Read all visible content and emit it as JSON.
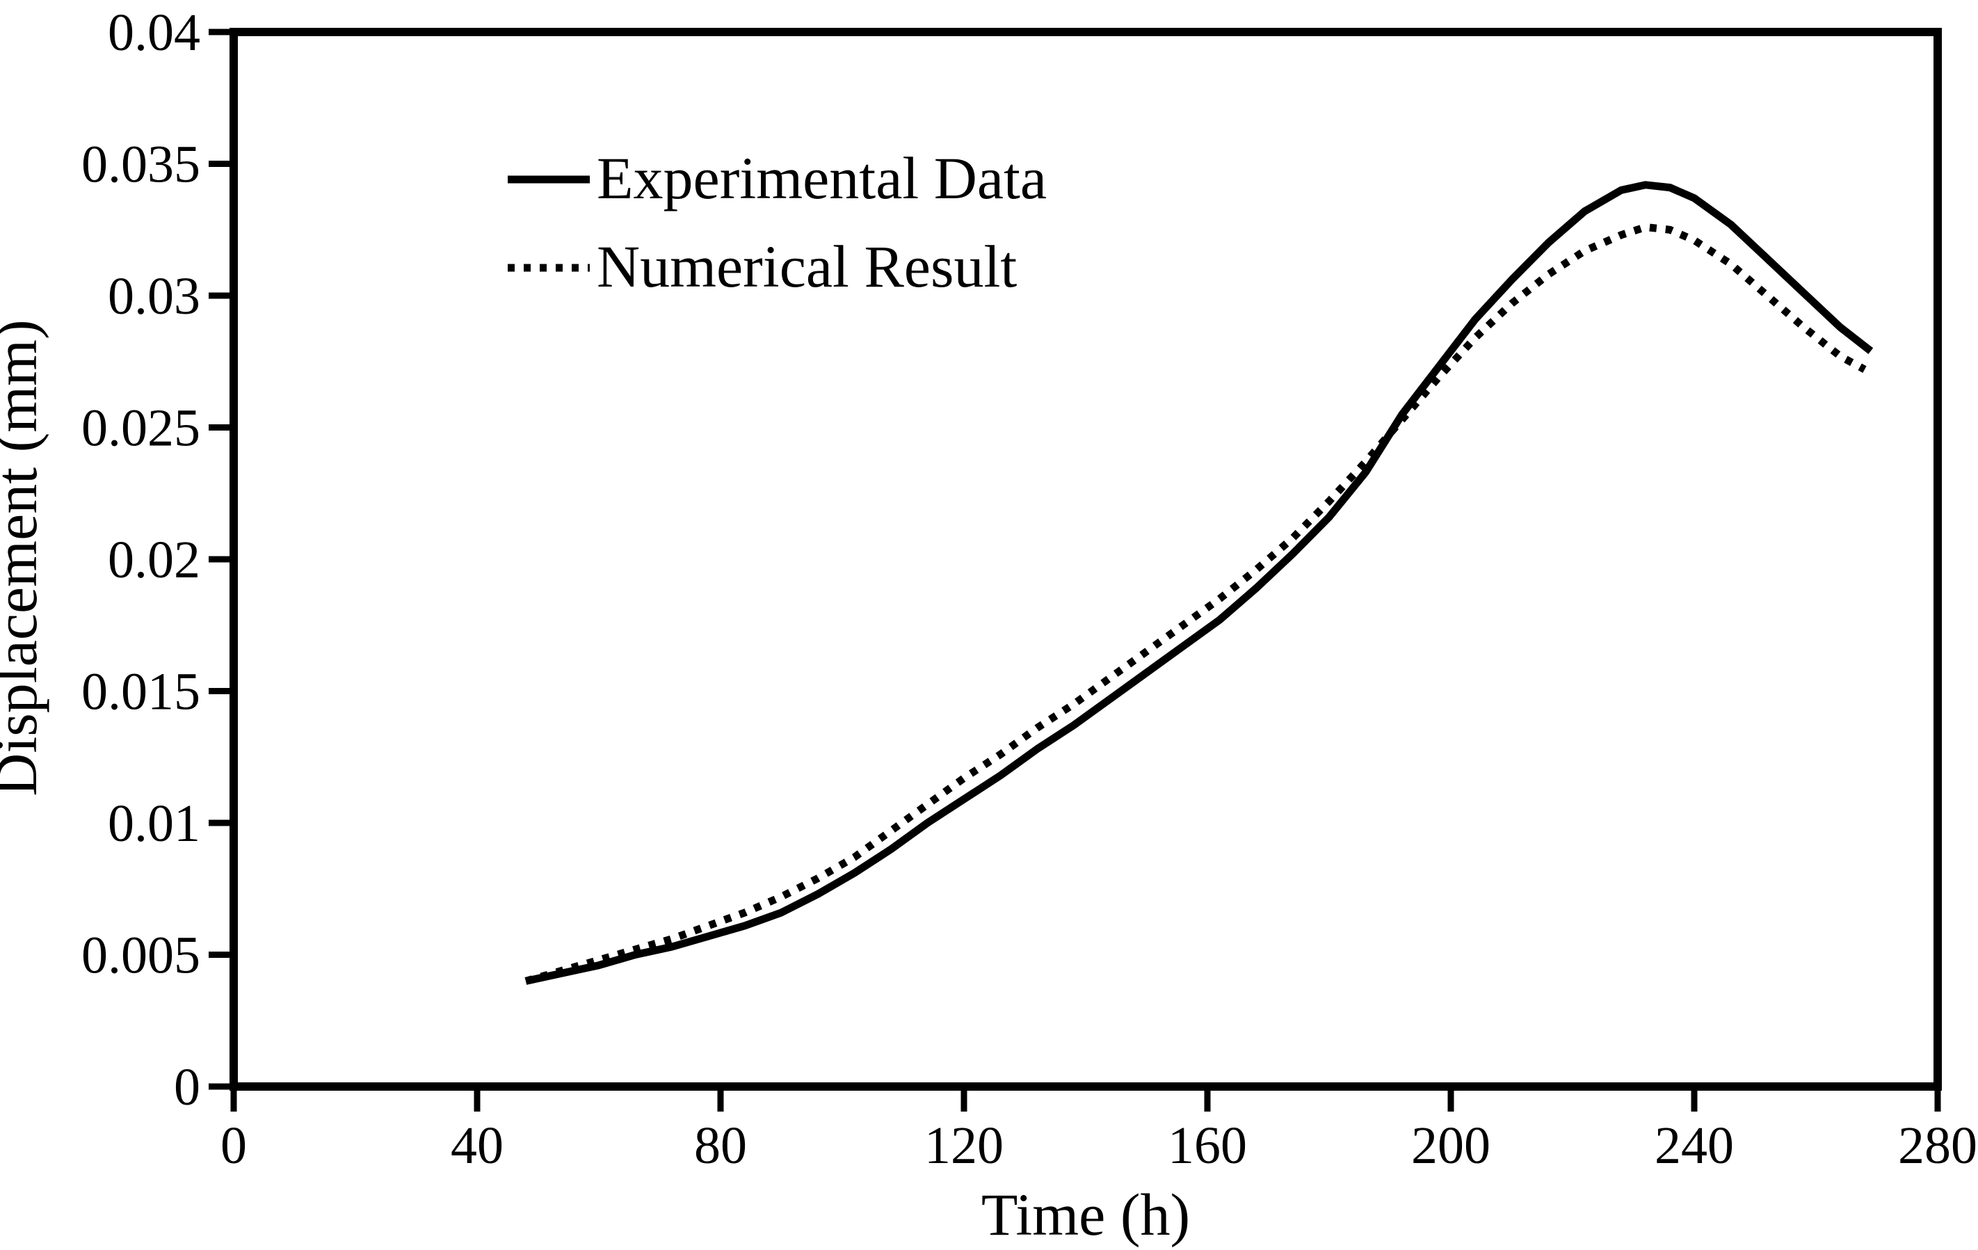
{
  "figure": {
    "background_color": "#ffffff",
    "ink_color": "#000000"
  },
  "axes": {
    "x_title": "Time (h)",
    "y_title": "Displacement (mm)"
  },
  "legend": {
    "items": [
      {
        "label": "Experimental Data",
        "line_style": "solid"
      },
      {
        "label": "Numerical Result",
        "line_style": "dotted"
      }
    ]
  },
  "chart_data": {
    "type": "line",
    "title": "",
    "xlabel": "Time (h)",
    "ylabel": "Displacement (mm)",
    "xlim": [
      0,
      280
    ],
    "ylim": [
      0,
      0.04
    ],
    "x_ticks": [
      0,
      40,
      80,
      120,
      160,
      200,
      240,
      280
    ],
    "x_tick_labels": [
      "0",
      "40",
      "80",
      "120",
      "160",
      "200",
      "240",
      "280"
    ],
    "y_ticks": [
      0,
      0.005,
      0.01,
      0.015,
      0.02,
      0.025,
      0.03,
      0.035,
      0.04
    ],
    "y_tick_labels": [
      "0",
      "0.005",
      "0.01",
      "0.015",
      "0.02",
      "0.025",
      "0.03",
      "0.035",
      "0.04"
    ],
    "grid": false,
    "legend_position": "upper-left-inside",
    "series": [
      {
        "name": "Experimental Data",
        "style": "solid",
        "color": "#000000",
        "points": [
          [
            48,
            0.004
          ],
          [
            54,
            0.0043
          ],
          [
            60,
            0.0046
          ],
          [
            66,
            0.005
          ],
          [
            72,
            0.0053
          ],
          [
            78,
            0.0057
          ],
          [
            84,
            0.0061
          ],
          [
            90,
            0.0066
          ],
          [
            96,
            0.0073
          ],
          [
            102,
            0.0081
          ],
          [
            108,
            0.009
          ],
          [
            114,
            0.01
          ],
          [
            120,
            0.0109
          ],
          [
            126,
            0.0118
          ],
          [
            132,
            0.0128
          ],
          [
            138,
            0.0137
          ],
          [
            144,
            0.0147
          ],
          [
            150,
            0.0157
          ],
          [
            156,
            0.0167
          ],
          [
            162,
            0.0177
          ],
          [
            168,
            0.0189
          ],
          [
            174,
            0.0202
          ],
          [
            180,
            0.0216
          ],
          [
            186,
            0.0233
          ],
          [
            192,
            0.0255
          ],
          [
            198,
            0.0273
          ],
          [
            204,
            0.0291
          ],
          [
            210,
            0.0306
          ],
          [
            216,
            0.032
          ],
          [
            222,
            0.0332
          ],
          [
            228,
            0.034
          ],
          [
            232,
            0.0342
          ],
          [
            236,
            0.0341
          ],
          [
            240,
            0.0337
          ],
          [
            246,
            0.0327
          ],
          [
            252,
            0.0314
          ],
          [
            258,
            0.0301
          ],
          [
            264,
            0.0288
          ],
          [
            269,
            0.0279
          ]
        ]
      },
      {
        "name": "Numerical Result",
        "style": "dotted",
        "color": "#000000",
        "points": [
          [
            48,
            0.004
          ],
          [
            54,
            0.0044
          ],
          [
            60,
            0.0048
          ],
          [
            66,
            0.0052
          ],
          [
            72,
            0.0056
          ],
          [
            78,
            0.0061
          ],
          [
            84,
            0.0066
          ],
          [
            90,
            0.0072
          ],
          [
            96,
            0.0079
          ],
          [
            102,
            0.0087
          ],
          [
            108,
            0.0097
          ],
          [
            114,
            0.0107
          ],
          [
            120,
            0.0117
          ],
          [
            126,
            0.0126
          ],
          [
            132,
            0.0136
          ],
          [
            138,
            0.0145
          ],
          [
            144,
            0.0155
          ],
          [
            150,
            0.0165
          ],
          [
            156,
            0.0175
          ],
          [
            162,
            0.0185
          ],
          [
            168,
            0.0196
          ],
          [
            174,
            0.0208
          ],
          [
            180,
            0.0222
          ],
          [
            186,
            0.0237
          ],
          [
            192,
            0.0253
          ],
          [
            198,
            0.0269
          ],
          [
            204,
            0.0284
          ],
          [
            210,
            0.0297
          ],
          [
            216,
            0.0308
          ],
          [
            222,
            0.0317
          ],
          [
            228,
            0.0323
          ],
          [
            232,
            0.0326
          ],
          [
            236,
            0.0325
          ],
          [
            240,
            0.0321
          ],
          [
            246,
            0.0312
          ],
          [
            252,
            0.03
          ],
          [
            258,
            0.0288
          ],
          [
            264,
            0.0277
          ],
          [
            268,
            0.0272
          ]
        ]
      }
    ]
  }
}
